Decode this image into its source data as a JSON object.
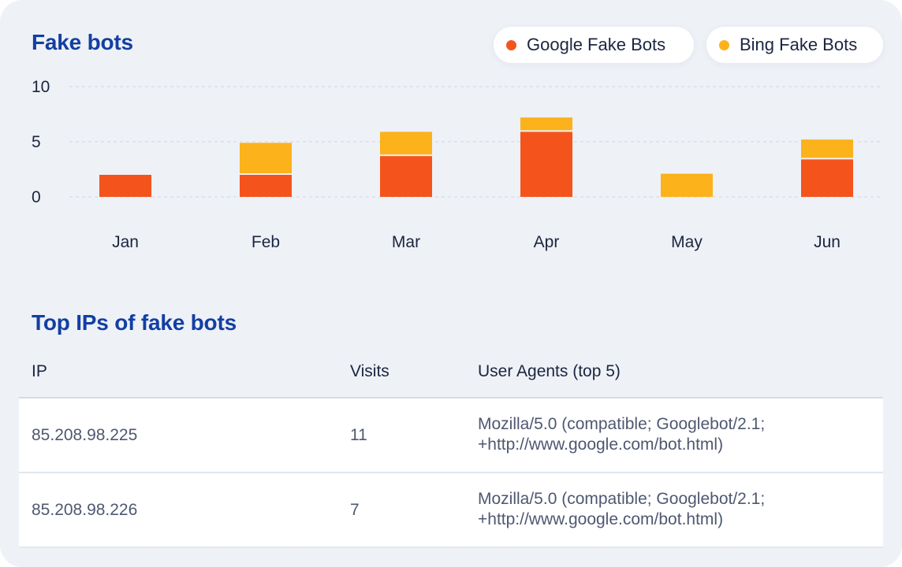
{
  "chart_section": {
    "title": "Fake bots"
  },
  "legend": {
    "google_label": "Google Fake Bots",
    "bing_label": "Bing Fake Bots"
  },
  "colors": {
    "google": "#f4541c",
    "bing": "#fbb21b",
    "title": "#123fa3"
  },
  "chart_data": {
    "type": "bar",
    "stacked": true,
    "categories": [
      "Jan",
      "Feb",
      "Mar",
      "Apr",
      "May",
      "Jun"
    ],
    "series": [
      {
        "name": "Google Fake Bots",
        "values": [
          2,
          2,
          3.7,
          5.9,
          0,
          3.4
        ]
      },
      {
        "name": "Bing Fake Bots",
        "values": [
          0,
          2.9,
          2.2,
          1.3,
          2.1,
          1.8
        ]
      }
    ],
    "yticks": [
      0,
      5,
      10
    ],
    "ylim": [
      0,
      10
    ],
    "grid": true,
    "legend_position": "top-right"
  },
  "table_section": {
    "title": "Top IPs of fake bots",
    "headers": {
      "ip": "IP",
      "visits": "Visits",
      "user_agents": "User Agents (top 5)"
    },
    "rows": [
      {
        "ip": "85.208.98.225",
        "visits": "11",
        "ua_line1": "Mozilla/5.0 (compatible; Googlebot/2.1;",
        "ua_line2": "+http://www.google.com/bot.html)"
      },
      {
        "ip": "85.208.98.226",
        "visits": "7",
        "ua_line1": "Mozilla/5.0 (compatible; Googlebot/2.1;",
        "ua_line2": "+http://www.google.com/bot.html)"
      }
    ]
  }
}
